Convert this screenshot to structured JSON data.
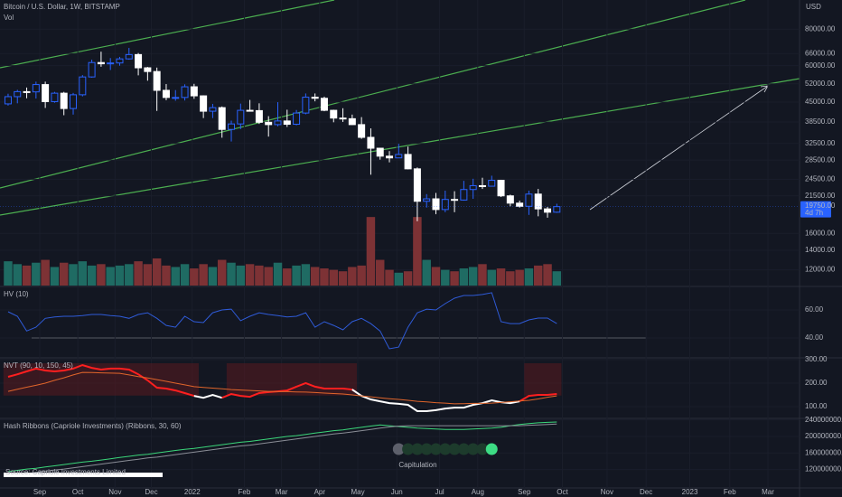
{
  "chart_data": [
    {
      "type": "candlestick",
      "title": "Bitcoin / U.S. Dollar, 1W, BITSTAMP",
      "subtitle": "Vol",
      "unit": "USD",
      "log_scale": true,
      "x": [
        0,
        1,
        2,
        3,
        4,
        5,
        6,
        7,
        8,
        9,
        10,
        11,
        12,
        13,
        14,
        15,
        16,
        17,
        18,
        19,
        20,
        21,
        22,
        23,
        24,
        25,
        26,
        27,
        28,
        29,
        30,
        31,
        32,
        33,
        34,
        35,
        36,
        37,
        38,
        39,
        40,
        41,
        42,
        43,
        44,
        45,
        46,
        47,
        48,
        49,
        50,
        51,
        52,
        53,
        54,
        55,
        56,
        57,
        58,
        59
      ],
      "open": [
        44400,
        47000,
        48900,
        48800,
        51700,
        45200,
        48300,
        42800,
        47700,
        54900,
        61500,
        60900,
        61300,
        63300,
        65500,
        59000,
        57300,
        49400,
        46700,
        46700,
        50800,
        47300,
        41900,
        43100,
        36300,
        37900,
        42200,
        42100,
        38400,
        37700,
        38800,
        37800,
        41300,
        46800,
        46400,
        42200,
        39700,
        39500,
        37700,
        34100,
        31300,
        29400,
        29000,
        29800,
        26600,
        20600,
        21000,
        19300,
        20900,
        20800,
        22600,
        23300,
        23200,
        24300,
        21500,
        20300,
        19800,
        21800,
        19400,
        18900
      ],
      "high": [
        48100,
        49600,
        50500,
        52900,
        52900,
        48800,
        48800,
        48400,
        55700,
        62900,
        67000,
        63700,
        64300,
        69000,
        66300,
        59400,
        59100,
        51900,
        49500,
        51800,
        52000,
        47500,
        44400,
        43500,
        38900,
        44500,
        45800,
        44600,
        40300,
        45000,
        42400,
        42300,
        48200,
        48200,
        47000,
        42400,
        42900,
        40800,
        40000,
        36600,
        31400,
        30600,
        32400,
        31700,
        26900,
        21800,
        22000,
        22400,
        22300,
        24200,
        24600,
        24800,
        25200,
        24400,
        21700,
        20700,
        22400,
        22700,
        19700,
        20200
      ],
      "low": [
        43800,
        44600,
        46400,
        46300,
        43000,
        44800,
        40600,
        40800,
        47100,
        54600,
        59500,
        58000,
        60000,
        62900,
        55600,
        53300,
        42000,
        45700,
        45500,
        45600,
        46200,
        39700,
        39700,
        34000,
        33000,
        36400,
        41900,
        37900,
        34300,
        37200,
        37000,
        37500,
        40900,
        45300,
        41900,
        38400,
        38500,
        37600,
        33700,
        25400,
        28600,
        28000,
        29200,
        26500,
        17600,
        19600,
        18600,
        18900,
        18900,
        20700,
        21000,
        22700,
        23200,
        21300,
        19800,
        19600,
        18500,
        18300,
        18100,
        18800
      ],
      "close": [
        47000,
        48900,
        48800,
        51700,
        45200,
        48300,
        42800,
        47700,
        54900,
        61500,
        60900,
        61300,
        63300,
        65500,
        59000,
        57300,
        49400,
        46700,
        46700,
        50800,
        47300,
        41900,
        43100,
        36300,
        37900,
        42200,
        42100,
        38400,
        37700,
        38800,
        37800,
        41300,
        46800,
        46400,
        42200,
        39700,
        39500,
        37700,
        34100,
        31300,
        29400,
        29000,
        29800,
        26600,
        20600,
        21000,
        19300,
        20900,
        20800,
        22600,
        23300,
        23200,
        24300,
        21500,
        20300,
        19800,
        21800,
        19400,
        18900,
        19750
      ],
      "up_color": "#2962ff",
      "down_color": "#ffffff",
      "volume": [
        34,
        30,
        28,
        32,
        36,
        26,
        32,
        30,
        34,
        28,
        30,
        26,
        28,
        30,
        34,
        30,
        38,
        28,
        26,
        30,
        24,
        30,
        26,
        36,
        32,
        28,
        30,
        28,
        26,
        32,
        24,
        28,
        30,
        26,
        24,
        22,
        20,
        26,
        28,
        96,
        36,
        22,
        18,
        20,
        96,
        36,
        26,
        22,
        20,
        24,
        26,
        30,
        22,
        24,
        20,
        22,
        24,
        28,
        30,
        20
      ],
      "volume_up_color": "#1f6b63",
      "volume_down_color": "#7d3235",
      "volume_ylim": [
        0,
        400
      ],
      "ylim": [
        10600,
        100700
      ],
      "yticks": [
        {
          "value": 80000,
          "label": "80000.00"
        },
        {
          "value": 66000,
          "label": "66000.00"
        },
        {
          "value": 60000,
          "label": "60000.00"
        },
        {
          "value": 52000,
          "label": "52000.00"
        },
        {
          "value": 45000,
          "label": "45000.00"
        },
        {
          "value": 38500,
          "label": "38500.00"
        },
        {
          "value": 32500,
          "label": "32500.00"
        },
        {
          "value": 28500,
          "label": "28500.00"
        },
        {
          "value": 24500,
          "label": "24500.00"
        },
        {
          "value": 21500,
          "label": "21500.00"
        },
        {
          "value": 16000,
          "label": "16000.00"
        },
        {
          "value": 14000,
          "label": "14000.00"
        },
        {
          "value": 12000,
          "label": "12000.00"
        }
      ],
      "price_tag": {
        "label": "19750.00",
        "countdown": "4d 7h",
        "color": "#2962ff"
      },
      "xlim": [
        -0.87,
        85.1
      ],
      "xticks": [
        {
          "value": 3.4,
          "label": "Sep"
        },
        {
          "value": 7.5,
          "label": "Oct"
        },
        {
          "value": 11.5,
          "label": "Nov"
        },
        {
          "value": 15.4,
          "label": "Dec"
        },
        {
          "value": 19.8,
          "label": "2022"
        },
        {
          "value": 25.4,
          "label": "Feb"
        },
        {
          "value": 29.4,
          "label": "Mar"
        },
        {
          "value": 33.5,
          "label": "Apr"
        },
        {
          "value": 37.6,
          "label": "May"
        },
        {
          "value": 41.8,
          "label": "Jun"
        },
        {
          "value": 46.4,
          "label": "Jul"
        },
        {
          "value": 50.5,
          "label": "Aug"
        },
        {
          "value": 55.5,
          "label": "Sep"
        },
        {
          "value": 59.6,
          "label": "Oct"
        },
        {
          "value": 64.4,
          "label": "Nov"
        },
        {
          "value": 68.6,
          "label": "Dec"
        },
        {
          "value": 73.3,
          "label": "2023"
        },
        {
          "value": 77.6,
          "label": "Feb"
        },
        {
          "value": 81.7,
          "label": "Mar"
        }
      ]
    },
    {
      "type": "line",
      "title": "HV (10)",
      "color": "#2f5bd8",
      "values": [
        58.7,
        55.5,
        45,
        47.7,
        54,
        55,
        55.5,
        55.5,
        56,
        56.8,
        56.8,
        56,
        55.5,
        54,
        56.8,
        58,
        54,
        49,
        47.7,
        55.5,
        51.6,
        51,
        58,
        60,
        60.6,
        52.3,
        55.5,
        58,
        56.8,
        56,
        55,
        55.5,
        58,
        47.7,
        51.6,
        49,
        45.8,
        51.6,
        54,
        50.3,
        45,
        32.3,
        33.5,
        47.7,
        58,
        60.6,
        60,
        64.5,
        68.4,
        70.3,
        70.3,
        71,
        72.3,
        51.6,
        50.3,
        50.3,
        52.9,
        54.2,
        54.2,
        50.3
      ],
      "ylim": [
        26.5,
        76.1
      ],
      "yticks": [
        {
          "value": 60,
          "label": "60.00"
        },
        {
          "value": 40,
          "label": "40.00"
        }
      ]
    },
    {
      "type": "line",
      "title": "NVT (90, 10, 150, 45)",
      "series": [
        {
          "values": [
            227,
            238,
            250,
            262,
            254,
            250,
            254,
            262,
            277,
            265,
            258,
            262,
            262,
            258,
            238,
            212,
            181,
            177,
            169,
            158,
            146,
            138,
            150,
            138,
            154,
            146,
            142,
            158,
            162,
            165,
            169,
            185,
            200,
            185,
            177,
            177,
            177,
            173,
            146,
            131,
            123,
            115,
            112,
            108,
            81,
            81,
            85,
            92,
            96,
            96,
            108,
            115,
            127,
            119,
            115,
            123,
            146,
            150,
            150,
            154
          ],
          "point_colors": [
            "#ff1f1f",
            "#ff1f1f",
            "#ff1f1f",
            "#ff1f1f",
            "#ff1f1f",
            "#ff1f1f",
            "#ff1f1f",
            "#ff1f1f",
            "#ff1f1f",
            "#ff1f1f",
            "#ff1f1f",
            "#ff1f1f",
            "#ff1f1f",
            "#ff1f1f",
            "#ff1f1f",
            "#ff1f1f",
            "#ff1f1f",
            "#ff1f1f",
            "#ff1f1f",
            "#ff1f1f",
            "#ff1f1f",
            "#ffffff",
            "#ffffff",
            "#ffffff",
            "#ff1f1f",
            "#ff1f1f",
            "#ff1f1f",
            "#ff1f1f",
            "#ff1f1f",
            "#ff1f1f",
            "#ff1f1f",
            "#ff1f1f",
            "#ff1f1f",
            "#ff1f1f",
            "#ff1f1f",
            "#ff1f1f",
            "#ff1f1f",
            "#ff1f1f",
            "#ffffff",
            "#ffffff",
            "#ffffff",
            "#ffffff",
            "#ffffff",
            "#ffffff",
            "#ffffff",
            "#ffffff",
            "#ffffff",
            "#ffffff",
            "#ffffff",
            "#ffffff",
            "#ffffff",
            "#ffffff",
            "#ffffff",
            "#ffffff",
            "#ffffff",
            "#ffffff",
            "#ff1f1f",
            "#ff1f1f",
            "#ff1f1f",
            "#ff1f1f"
          ]
        },
        {
          "values": [
            165,
            174,
            183,
            191,
            200,
            212,
            223,
            235,
            246,
            245,
            244,
            243,
            242,
            235,
            228,
            222,
            215,
            208,
            200,
            193,
            185,
            182,
            179,
            176,
            173,
            171,
            169,
            167,
            165,
            164,
            164,
            163,
            162,
            160,
            158,
            156,
            154,
            150,
            146,
            142,
            138,
            134,
            131,
            127,
            123,
            120,
            117,
            115,
            112,
            113,
            114,
            114,
            115,
            118,
            121,
            124,
            127,
            133,
            140,
            146
          ],
          "color": "#e0652b"
        }
      ],
      "band_color": "#5a1a1f",
      "ylim": [
        54,
        304
      ],
      "yticks": [
        {
          "value": 300,
          "label": "300.00"
        },
        {
          "value": 200,
          "label": "200.00"
        },
        {
          "value": 100,
          "label": "100.00"
        }
      ]
    },
    {
      "type": "line",
      "title": "Hash Ribbons (Capriole Investments) (Ribbons, 30, 60)",
      "series": [
        {
          "values": [
            115000000,
            118000000,
            121000000,
            123000000,
            126000000,
            129000000,
            132000000,
            135000000,
            138000000,
            140000000,
            143000000,
            146000000,
            149000000,
            152000000,
            155000000,
            157000000,
            160000000,
            163000000,
            166000000,
            169000000,
            171000000,
            174000000,
            177000000,
            180000000,
            183000000,
            186000000,
            188000000,
            191000000,
            194000000,
            197000000,
            200000000,
            202000000,
            205000000,
            208000000,
            211000000,
            214000000,
            216000000,
            219000000,
            222000000,
            225000000,
            228000000,
            226000000,
            224000000,
            222000000,
            220000000,
            219000000,
            218000000,
            217000000,
            217000000,
            217000000,
            218000000,
            219000000,
            220000000,
            222000000,
            226000000,
            229000000,
            231000000,
            233000000,
            234000000,
            235000000
          ],
          "color": "#3bd67a"
        },
        {
          "values": [
            104000000,
            107000000,
            110000000,
            113000000,
            116000000,
            119000000,
            121000000,
            124000000,
            127000000,
            130000000,
            133000000,
            136000000,
            139000000,
            142000000,
            145000000,
            148000000,
            150000000,
            153000000,
            156000000,
            159000000,
            162000000,
            165000000,
            168000000,
            171000000,
            174000000,
            177000000,
            179000000,
            182000000,
            185000000,
            188000000,
            191000000,
            194000000,
            197000000,
            200000000,
            203000000,
            206000000,
            208000000,
            211000000,
            214000000,
            217000000,
            220000000,
            223000000,
            225000000,
            226000000,
            226000000,
            226000000,
            226000000,
            226000000,
            226000000,
            226000000,
            226000000,
            226000000,
            226000000,
            226000000,
            226000000,
            226000000,
            227000000,
            228000000,
            229000000,
            230000000
          ],
          "color": "#8a8d96"
        }
      ],
      "ylim": [
        75400000,
        241500000
      ],
      "yticks": [
        {
          "value": 240000000,
          "label": "240000000.00"
        },
        {
          "value": 200000000,
          "label": "200000000.00"
        },
        {
          "value": 160000000,
          "label": "160000000.00"
        },
        {
          "value": 120000000,
          "label": "120000000.00"
        }
      ],
      "markers": {
        "x": [
          42,
          43,
          44,
          45,
          46,
          47,
          48,
          49,
          50,
          51,
          52
        ],
        "colors": [
          "#5d606b",
          "#1d3b2c",
          "#1d3b2c",
          "#1d3b2c",
          "#1d3b2c",
          "#1d3b2c",
          "#1d3b2c",
          "#1d3b2c",
          "#1d3b2c",
          "#1d3b2c",
          "#3ddc84"
        ]
      },
      "annotation": "Capitulation",
      "source": "Source: Capriole Investments Limited"
    }
  ]
}
